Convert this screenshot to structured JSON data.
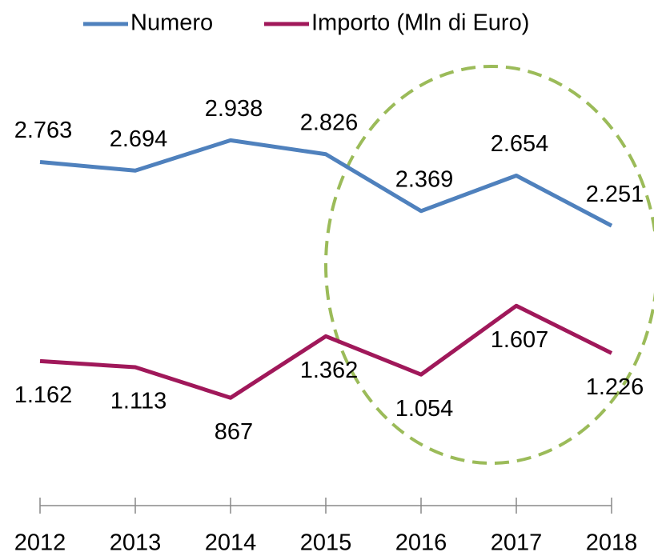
{
  "chart_data": {
    "type": "line",
    "categories": [
      "2012",
      "2013",
      "2014",
      "2015",
      "2016",
      "2017",
      "2018"
    ],
    "series": [
      {
        "name": "Numero",
        "color": "#4f81bd",
        "values": [
          2763,
          2694,
          2938,
          2826,
          2369,
          2654,
          2251
        ],
        "value_labels": [
          "2.763",
          "2.694",
          "2.938",
          "2.826",
          "2.369",
          "2.654",
          "2.251"
        ]
      },
      {
        "name": "Importo (Mln di Euro)",
        "color": "#a0185a",
        "values": [
          1162,
          1113,
          867,
          1362,
          1054,
          1607,
          1226
        ],
        "value_labels": [
          "1.162",
          "1.113",
          "867",
          "1.362",
          "1.054",
          "1.607",
          "1.226"
        ]
      }
    ],
    "ylim": [
      0,
      3500
    ],
    "legend": "top"
  }
}
